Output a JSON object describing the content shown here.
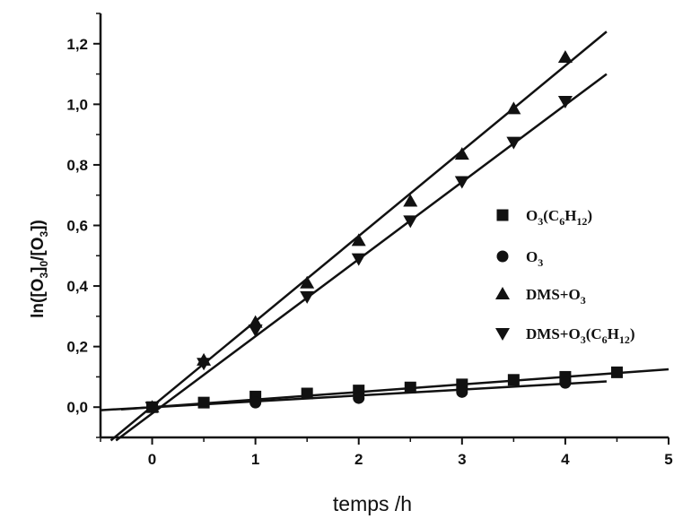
{
  "chart_data": {
    "type": "scatter",
    "xlabel": "temps /h",
    "ylabel": {
      "main": "ln([O",
      "s1": "3",
      "m1": "]",
      "s2": "0",
      "m2": "/[O",
      "s3": "3",
      "m3": "])"
    },
    "xlim": [
      -0.5,
      5
    ],
    "ylim": [
      -0.1,
      1.3
    ],
    "x_ticks": [
      "0",
      "1",
      "2",
      "3",
      "4",
      "5"
    ],
    "x_tick_values": [
      0,
      1,
      2,
      3,
      4,
      5
    ],
    "y_ticks": [
      "0,0",
      "0,2",
      "0,4",
      "0,6",
      "0,8",
      "1,0",
      "1,2"
    ],
    "y_tick_values": [
      0,
      0.2,
      0.4,
      0.6,
      0.8,
      1.0,
      1.2
    ],
    "grid": false,
    "legend_position": "right",
    "series": [
      {
        "name": "O3(C6H12)",
        "legend": {
          "t1": "O",
          "s1": "3",
          "t2": "(C",
          "s2": "6",
          "t3": "H",
          "s3": "12",
          "t4": ")"
        },
        "marker": "square",
        "points": [
          [
            0,
            0
          ],
          [
            0.5,
            0.015
          ],
          [
            1,
            0.035
          ],
          [
            1.5,
            0.045
          ],
          [
            2,
            0.055
          ],
          [
            2.5,
            0.065
          ],
          [
            3,
            0.075
          ],
          [
            3.5,
            0.09
          ],
          [
            4,
            0.1
          ],
          [
            4.5,
            0.115
          ]
        ],
        "fit": {
          "x": [
            -0.3,
            5
          ],
          "y": [
            -0.0075,
            0.125
          ]
        }
      },
      {
        "name": "O3",
        "legend": {
          "t1": "O",
          "s1": "3",
          "t2": "",
          "s2": "",
          "t3": "",
          "s3": "",
          "t4": ""
        },
        "marker": "circle",
        "points": [
          [
            0,
            0
          ],
          [
            1,
            0.015
          ],
          [
            2,
            0.03
          ],
          [
            3,
            0.05
          ],
          [
            4,
            0.08
          ]
        ],
        "fit": {
          "x": [
            -0.5,
            4.4
          ],
          "y": [
            -0.01,
            0.085
          ]
        }
      },
      {
        "name": "DMS+O3",
        "legend": {
          "t1": "DMS+O",
          "s1": "3",
          "t2": "",
          "s2": "",
          "t3": "",
          "s3": "",
          "t4": ""
        },
        "marker": "triangle-up",
        "points": [
          [
            0,
            0
          ],
          [
            0.5,
            0.155
          ],
          [
            1,
            0.28
          ],
          [
            1.5,
            0.41
          ],
          [
            2,
            0.55
          ],
          [
            2.5,
            0.68
          ],
          [
            3,
            0.835
          ],
          [
            3.5,
            0.985
          ],
          [
            4,
            1.155
          ]
        ],
        "fit": {
          "x": [
            -0.4,
            4.4
          ],
          "y": [
            -0.11,
            1.24
          ]
        }
      },
      {
        "name": "DMS+O3(C6H12)",
        "legend": {
          "t1": "DMS+O",
          "s1": "3",
          "t2": "(C",
          "s2": "6",
          "t3": "H",
          "s3": "12",
          "t4": ")"
        },
        "marker": "triangle-down",
        "points": [
          [
            0,
            0
          ],
          [
            0.5,
            0.145
          ],
          [
            1,
            0.255
          ],
          [
            1.5,
            0.365
          ],
          [
            2,
            0.49
          ],
          [
            2.5,
            0.615
          ],
          [
            3,
            0.745
          ],
          [
            3.5,
            0.875
          ],
          [
            4,
            1.01
          ]
        ],
        "fit": {
          "x": [
            -0.35,
            4.4
          ],
          "y": [
            -0.11,
            1.1
          ]
        }
      }
    ]
  }
}
